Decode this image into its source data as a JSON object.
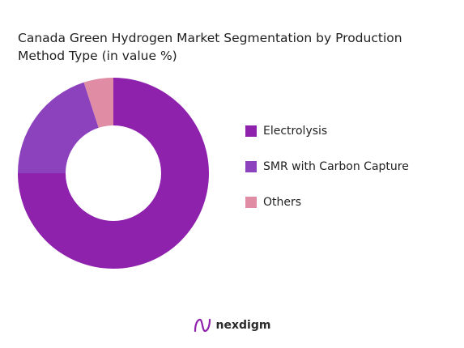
{
  "title": "Canada Green Hydrogen Market Segmentation by Production\nMethod  Type (in value %)",
  "chart_data": {
    "type": "pie",
    "donut": true,
    "start_angle_deg": 0,
    "direction": "clockwise",
    "legend_position": "right",
    "series": [
      {
        "name": "Electrolysis",
        "value": 75,
        "color": "#8e22ad"
      },
      {
        "name": "SMR with Carbon Capture",
        "value": 20,
        "color": "#8c41bd"
      },
      {
        "name": "Others",
        "value": 5,
        "color": "#e08ca4"
      }
    ]
  },
  "footer": {
    "brand_text": "nexdigm",
    "brand_icon": "nexdigm-logo-icon",
    "brand_color": "#8e22ad"
  }
}
